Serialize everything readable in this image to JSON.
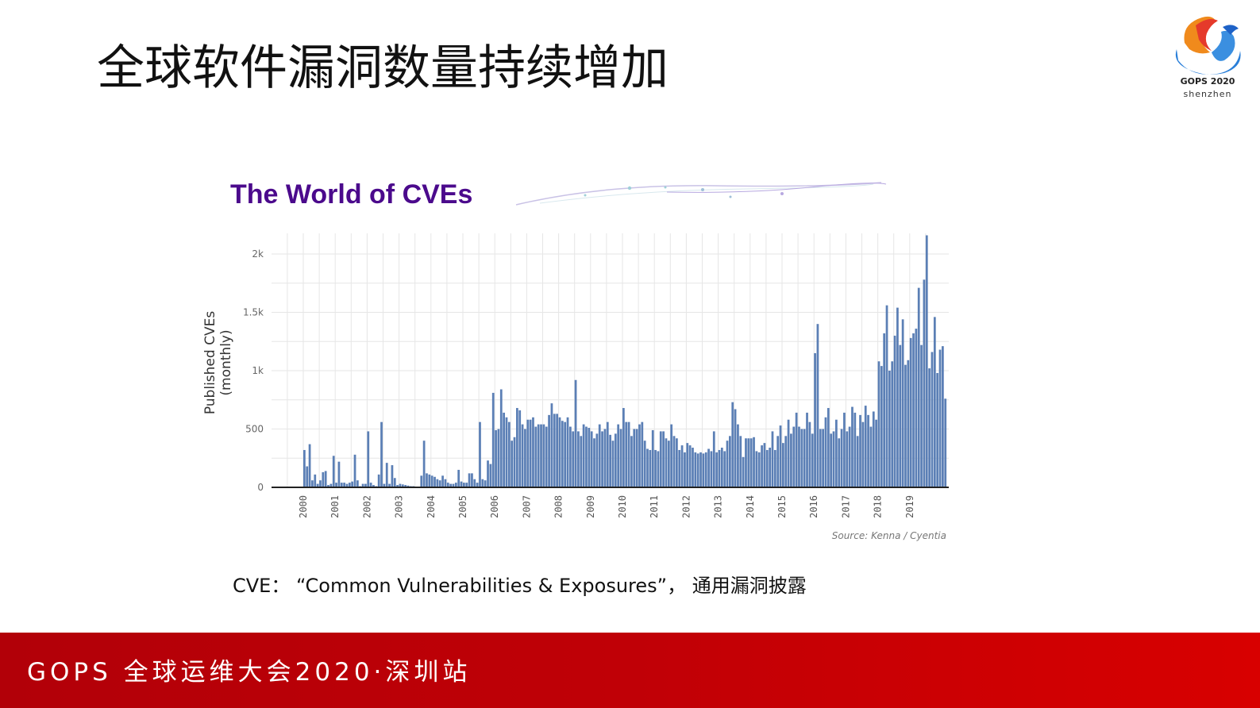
{
  "slide": {
    "title": "全球软件漏洞数量持续增加",
    "logo": {
      "name": "GOPS 2020",
      "city": "shenzhen"
    },
    "caption": "CVE： “Common Vulnerabilities & Exposures”， 通用漏洞披露",
    "footer": "GOPS 全球运维大会2020·深圳站",
    "colors": {
      "footer_red": "#c00006",
      "chart_title_purple": "#4b0a8c",
      "bar_blue": "#5b7fb5"
    }
  },
  "chart_data": {
    "type": "bar",
    "title": "The World of CVEs",
    "xlabel": "",
    "ylabel": "Published CVEs (monthly)",
    "ylim": [
      0,
      2150
    ],
    "yticks": [
      0,
      500,
      1000,
      1500,
      2000
    ],
    "ytick_labels": [
      "0",
      "500",
      "1k",
      "1.5k",
      "2k"
    ],
    "xtick_labels": [
      "2000",
      "2001",
      "2002",
      "2003",
      "2004",
      "2005",
      "2006",
      "2007",
      "2008",
      "2009",
      "2010",
      "2011",
      "2012",
      "2013",
      "2014",
      "2015",
      "2016",
      "2017",
      "2018",
      "2019"
    ],
    "grid": true,
    "legend": "none",
    "source": "Source: Kenna / Cyentia",
    "x_start": "2000-01",
    "x_interval": "month",
    "values": [
      320,
      180,
      370,
      60,
      110,
      30,
      60,
      130,
      140,
      20,
      30,
      270,
      40,
      220,
      40,
      40,
      30,
      40,
      50,
      280,
      60,
      10,
      30,
      30,
      480,
      40,
      20,
      10,
      110,
      560,
      30,
      210,
      30,
      190,
      80,
      20,
      30,
      25,
      20,
      15,
      10,
      10,
      5,
      5,
      100,
      400,
      120,
      110,
      100,
      90,
      70,
      60,
      100,
      70,
      40,
      30,
      30,
      40,
      150,
      50,
      40,
      40,
      120,
      120,
      70,
      40,
      560,
      70,
      60,
      230,
      200,
      810,
      490,
      500,
      840,
      640,
      600,
      560,
      400,
      430,
      680,
      660,
      540,
      500,
      580,
      580,
      600,
      520,
      540,
      540,
      540,
      520,
      620,
      720,
      630,
      630,
      600,
      570,
      560,
      600,
      520,
      480,
      920,
      480,
      440,
      540,
      520,
      510,
      480,
      420,
      460,
      540,
      480,
      500,
      560,
      450,
      400,
      460,
      540,
      500,
      680,
      560,
      560,
      440,
      500,
      500,
      540,
      560,
      400,
      330,
      320,
      490,
      320,
      310,
      480,
      480,
      420,
      400,
      540,
      440,
      420,
      320,
      360,
      300,
      380,
      360,
      340,
      300,
      290,
      300,
      290,
      300,
      330,
      310,
      480,
      300,
      320,
      340,
      310,
      400,
      440,
      730,
      670,
      540,
      440,
      260,
      420,
      420,
      420,
      430,
      310,
      300,
      360,
      380,
      320,
      340,
      480,
      320,
      440,
      530,
      380,
      440,
      580,
      460,
      520,
      640,
      520,
      500,
      500,
      640,
      560,
      460,
      1150,
      1400,
      500,
      500,
      600,
      680,
      460,
      480,
      580,
      420,
      500,
      640,
      480,
      520,
      690,
      640,
      440,
      620,
      560,
      700,
      620,
      520,
      650,
      580,
      1080,
      1040,
      1320,
      1560,
      1000,
      1080,
      1300,
      1540,
      1220,
      1440,
      1050,
      1090,
      1280,
      1320,
      1360,
      1710,
      1220,
      1780,
      2160,
      1020,
      1160,
      1460,
      980,
      1180,
      1210,
      760
    ]
  }
}
